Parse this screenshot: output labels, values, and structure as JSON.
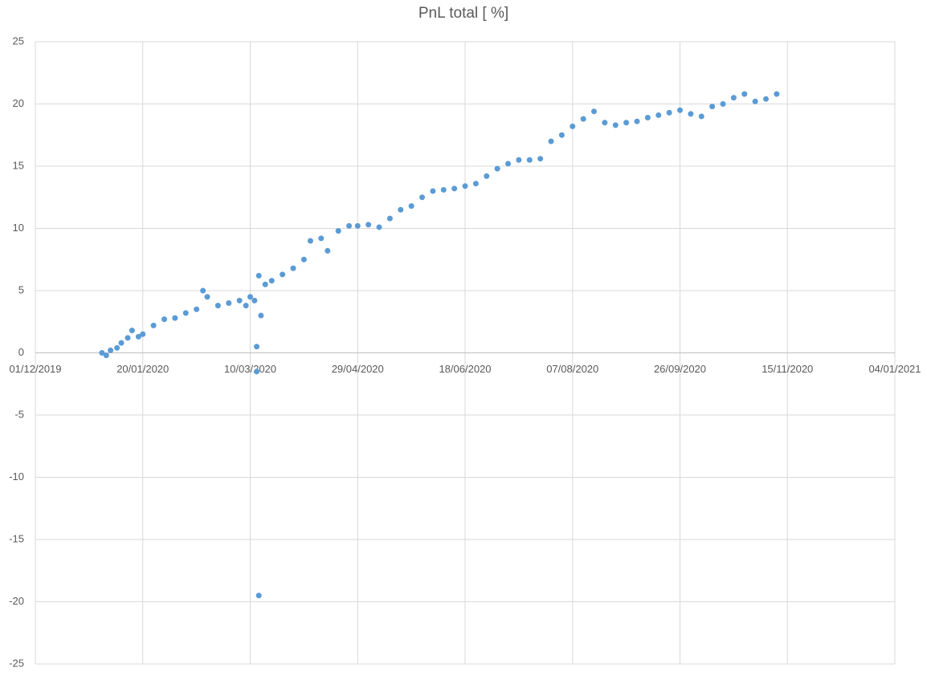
{
  "chart_data": {
    "type": "scatter",
    "title": "PnL total [ %]",
    "x": [
      "01/01/2020",
      "03/01/2020",
      "05/01/2020",
      "08/01/2020",
      "10/01/2020",
      "13/01/2020",
      "15/01/2020",
      "18/01/2020",
      "20/01/2020",
      "25/01/2020",
      "30/01/2020",
      "04/02/2020",
      "09/02/2020",
      "14/02/2020",
      "17/02/2020",
      "19/02/2020",
      "24/02/2020",
      "29/02/2020",
      "05/03/2020",
      "08/03/2020",
      "10/03/2020",
      "12/03/2020",
      "13/03/2020",
      "13/03/2020",
      "14/03/2020",
      "14/03/2020",
      "15/03/2020",
      "17/03/2020",
      "20/03/2020",
      "25/03/2020",
      "30/03/2020",
      "04/04/2020",
      "07/04/2020",
      "12/04/2020",
      "15/04/2020",
      "20/04/2020",
      "25/04/2020",
      "29/04/2020",
      "04/05/2020",
      "09/05/2020",
      "14/05/2020",
      "19/05/2020",
      "24/05/2020",
      "29/05/2020",
      "03/06/2020",
      "08/06/2020",
      "13/06/2020",
      "18/06/2020",
      "23/06/2020",
      "28/06/2020",
      "03/07/2020",
      "08/07/2020",
      "13/07/2020",
      "18/07/2020",
      "23/07/2020",
      "28/07/2020",
      "02/08/2020",
      "07/08/2020",
      "12/08/2020",
      "17/08/2020",
      "22/08/2020",
      "27/08/2020",
      "01/09/2020",
      "06/09/2020",
      "11/09/2020",
      "16/09/2020",
      "21/09/2020",
      "26/09/2020",
      "01/10/2020",
      "06/10/2020",
      "11/10/2020",
      "16/10/2020",
      "21/10/2020",
      "26/10/2020",
      "31/10/2020",
      "05/11/2020",
      "10/11/2020"
    ],
    "series": [
      {
        "name": "PnL total",
        "color": "#5b9bd5",
        "values": [
          0,
          -0.2,
          0.2,
          0.4,
          0.8,
          1.2,
          1.8,
          1.3,
          1.5,
          2.2,
          2.7,
          2.8,
          3.2,
          3.5,
          5.0,
          4.5,
          3.8,
          4.0,
          4.2,
          3.8,
          4.5,
          4.2,
          0.5,
          -1.5,
          -19.5,
          6.2,
          3.0,
          5.5,
          5.8,
          6.3,
          6.8,
          7.5,
          9.0,
          9.2,
          8.2,
          9.8,
          10.2,
          10.2,
          10.3,
          10.1,
          10.8,
          11.5,
          11.8,
          12.5,
          13.0,
          13.1,
          13.2,
          13.4,
          13.6,
          14.2,
          14.8,
          15.2,
          15.5,
          15.5,
          15.6,
          17.0,
          17.5,
          18.2,
          18.8,
          19.4,
          18.5,
          18.3,
          18.5,
          18.6,
          18.9,
          19.1,
          19.3,
          19.5,
          19.2,
          19.0,
          19.8,
          20.0,
          20.5,
          20.8,
          20.2,
          20.4,
          20.8
        ]
      }
    ],
    "xlim": [
      "01/12/2019",
      "04/01/2021"
    ],
    "xticks": [
      "01/12/2019",
      "20/01/2020",
      "10/03/2020",
      "29/04/2020",
      "18/06/2020",
      "07/08/2020",
      "26/09/2020",
      "15/11/2020",
      "04/01/2021"
    ],
    "ylim": [
      -25,
      25
    ],
    "yticks": [
      -25,
      -20,
      -15,
      -10,
      -5,
      0,
      5,
      10,
      15,
      20,
      25
    ],
    "grid": true
  }
}
